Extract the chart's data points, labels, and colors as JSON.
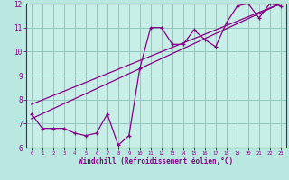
{
  "bg_color": "#b8e8e0",
  "plot_bg_color": "#c8eee8",
  "grid_color": "#90c8c0",
  "line_color": "#880088",
  "spine_color": "#880088",
  "xlim": [
    -0.5,
    23.5
  ],
  "ylim": [
    6,
    12
  ],
  "xticks": [
    0,
    1,
    2,
    3,
    4,
    5,
    6,
    7,
    8,
    9,
    10,
    11,
    12,
    13,
    14,
    15,
    16,
    17,
    18,
    19,
    20,
    21,
    22,
    23
  ],
  "yticks": [
    6,
    7,
    8,
    9,
    10,
    11,
    12
  ],
  "xlabel": "Windchill (Refroidissement éolien,°C)",
  "data_x": [
    0,
    1,
    2,
    3,
    4,
    5,
    6,
    7,
    8,
    9,
    10,
    11,
    12,
    13,
    14,
    15,
    16,
    17,
    18,
    19,
    20,
    21,
    22,
    23
  ],
  "data_y": [
    7.4,
    6.8,
    6.8,
    6.8,
    6.6,
    6.5,
    6.6,
    7.4,
    6.1,
    6.5,
    9.3,
    11.0,
    11.0,
    10.3,
    10.3,
    10.9,
    10.5,
    10.2,
    11.2,
    11.9,
    12.0,
    11.4,
    12.0,
    11.9
  ],
  "trend1_x": [
    0,
    23
  ],
  "trend1_y": [
    7.2,
    12.0
  ],
  "trend2_x": [
    0,
    23
  ],
  "trend2_y": [
    7.8,
    12.0
  ],
  "xtick_fontsize": 4.0,
  "ytick_fontsize": 5.5,
  "xlabel_fontsize": 5.5
}
